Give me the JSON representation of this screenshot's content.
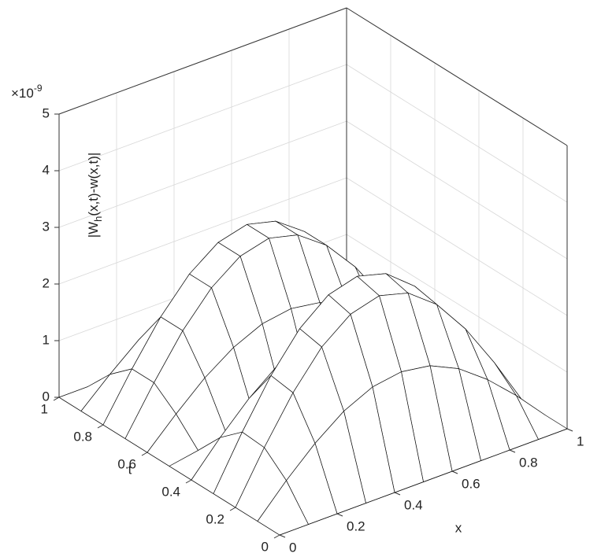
{
  "chart_data": {
    "type": "surface",
    "x": [
      0,
      0.1,
      0.2,
      0.3,
      0.4,
      0.5,
      0.6,
      0.7,
      0.8,
      0.9,
      1
    ],
    "y": [
      0,
      0.1,
      0.2,
      0.3,
      0.4,
      0.5,
      0.6,
      0.7,
      0.8,
      0.9,
      1
    ],
    "z": [
      [
        0,
        0,
        0,
        0,
        0,
        0,
        0,
        0,
        0,
        0,
        0
      ],
      [
        0,
        0.53,
        1.0,
        1.38,
        1.62,
        1.7,
        1.62,
        1.38,
        1.0,
        0.53,
        0
      ],
      [
        0,
        0.87,
        1.65,
        2.27,
        2.66,
        2.8,
        2.66,
        2.27,
        1.65,
        0.87,
        0
      ],
      [
        0,
        0.9,
        1.71,
        2.35,
        2.76,
        2.9,
        2.76,
        2.35,
        1.71,
        0.9,
        0
      ],
      [
        0,
        0.56,
        1.06,
        1.46,
        1.71,
        1.8,
        1.71,
        1.46,
        1.06,
        0.56,
        0
      ],
      [
        0,
        0.09,
        0.18,
        0.24,
        0.29,
        0.3,
        0.29,
        0.24,
        0.18,
        0.09,
        0
      ],
      [
        0,
        0.49,
        0.94,
        1.29,
        1.52,
        1.6,
        1.52,
        1.29,
        0.94,
        0.49,
        0
      ],
      [
        0,
        0.8,
        1.53,
        2.1,
        2.47,
        2.6,
        2.47,
        2.1,
        1.53,
        0.8,
        0
      ],
      [
        0,
        0.8,
        1.53,
        2.1,
        2.47,
        2.6,
        2.47,
        2.1,
        1.53,
        0.8,
        0
      ],
      [
        0,
        0.46,
        0.88,
        1.21,
        1.43,
        1.5,
        1.43,
        1.21,
        0.88,
        0.46,
        0
      ],
      [
        0,
        0,
        0,
        0,
        0,
        0,
        0,
        0,
        0,
        0,
        0
      ]
    ],
    "xlim": [
      0,
      1
    ],
    "ylim": [
      0,
      1
    ],
    "zlim": [
      0,
      5
    ],
    "xticks": [
      0,
      0.2,
      0.4,
      0.6,
      0.8,
      1
    ],
    "yticks": [
      0,
      0.2,
      0.4,
      0.6,
      0.8,
      1
    ],
    "zticks": [
      0,
      1,
      2,
      3,
      4,
      5
    ],
    "xlabel": "x",
    "ylabel": "t",
    "zlabel": [
      "|W",
      "h",
      "(x,t)-w(x,t)|"
    ],
    "zexponent": {
      "base": "×10",
      "power": "-9"
    },
    "grid": true,
    "edge_color": "#111111",
    "face_color": "#ffffff"
  }
}
